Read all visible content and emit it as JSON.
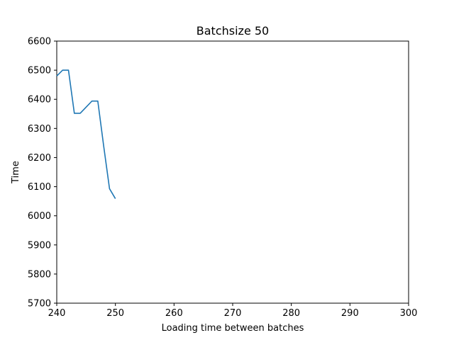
{
  "chart_data": {
    "type": "line",
    "title": "Batchsize 50",
    "xlabel": "Loading time between batches",
    "ylabel": "Time",
    "xlim": [
      240,
      300
    ],
    "ylim": [
      5700,
      6600
    ],
    "xticks": [
      240,
      250,
      260,
      270,
      280,
      290,
      300
    ],
    "yticks": [
      5700,
      5800,
      5900,
      6000,
      6100,
      6200,
      6300,
      6400,
      6500,
      6600
    ],
    "grid": false,
    "series": [
      {
        "color": "#1f77b4",
        "x": [
          240,
          241,
          242,
          243,
          244,
          245,
          246,
          247,
          248,
          249,
          250
        ],
        "y": [
          6480,
          6500,
          6500,
          6352,
          6352,
          6373,
          6394,
          6394,
          6240,
          6093,
          6059
        ]
      }
    ]
  }
}
